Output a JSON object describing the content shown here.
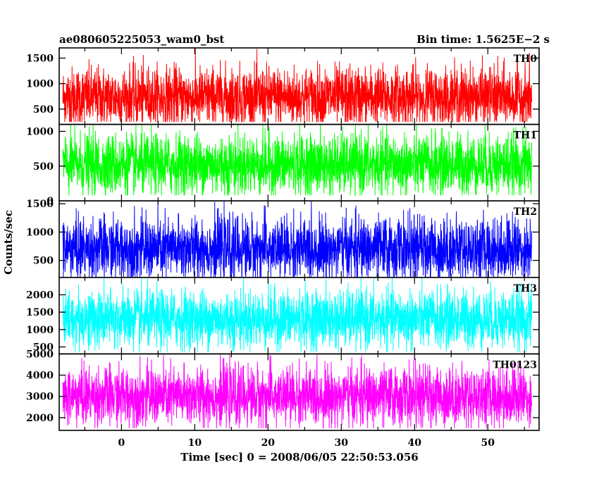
{
  "header": {
    "title": "ae080605225053_wam0_bst",
    "bin_time": "Bin time: 1.5625E−2 s"
  },
  "colors": {
    "TH0": "#ff0000",
    "TH1": "#00ff00",
    "TH2": "#0000ff",
    "TH3": "#00ffff",
    "TH0123": "#ff00ff"
  },
  "chart_data": {
    "type": "line",
    "title": "ae080605225053_wam0_bst",
    "subtitle": "Bin time: 1.5625E−2 s",
    "xlabel": "Time [sec] 0 = 2008/06/05 22:50:53.056",
    "ylabel": "Counts/sec",
    "xlim": [
      -8.5,
      57
    ],
    "x_ticks": [
      0,
      10,
      20,
      30,
      40,
      50
    ],
    "x_range_data": [
      -8,
      56
    ],
    "grid": false,
    "panels": [
      {
        "name": "TH0",
        "ylim": [
          200,
          1700
        ],
        "y_ticks": [
          500,
          1000,
          1500
        ],
        "mean": 730,
        "noise_sd": 300,
        "min": 250,
        "max": 1700
      },
      {
        "name": "TH1",
        "ylim": [
          0,
          1100
        ],
        "y_ticks": [
          0,
          500,
          1000
        ],
        "mean": 520,
        "noise_sd": 220,
        "min": 80,
        "max": 1100
      },
      {
        "name": "TH2",
        "ylim": [
          200,
          1550
        ],
        "y_ticks": [
          500,
          1000,
          1500
        ],
        "mean": 700,
        "noise_sd": 280,
        "min": 200,
        "max": 1550
      },
      {
        "name": "TH3",
        "ylim": [
          300,
          2500
        ],
        "y_ticks": [
          500,
          1000,
          1500,
          2000
        ],
        "mean": 1300,
        "noise_sd": 420,
        "min": 350,
        "max": 2500
      },
      {
        "name": "TH0123",
        "ylim": [
          1400,
          5000
        ],
        "y_ticks": [
          2000,
          3000,
          4000,
          5000
        ],
        "mean": 3000,
        "noise_sd": 700,
        "min": 1500,
        "max": 4950
      }
    ]
  }
}
